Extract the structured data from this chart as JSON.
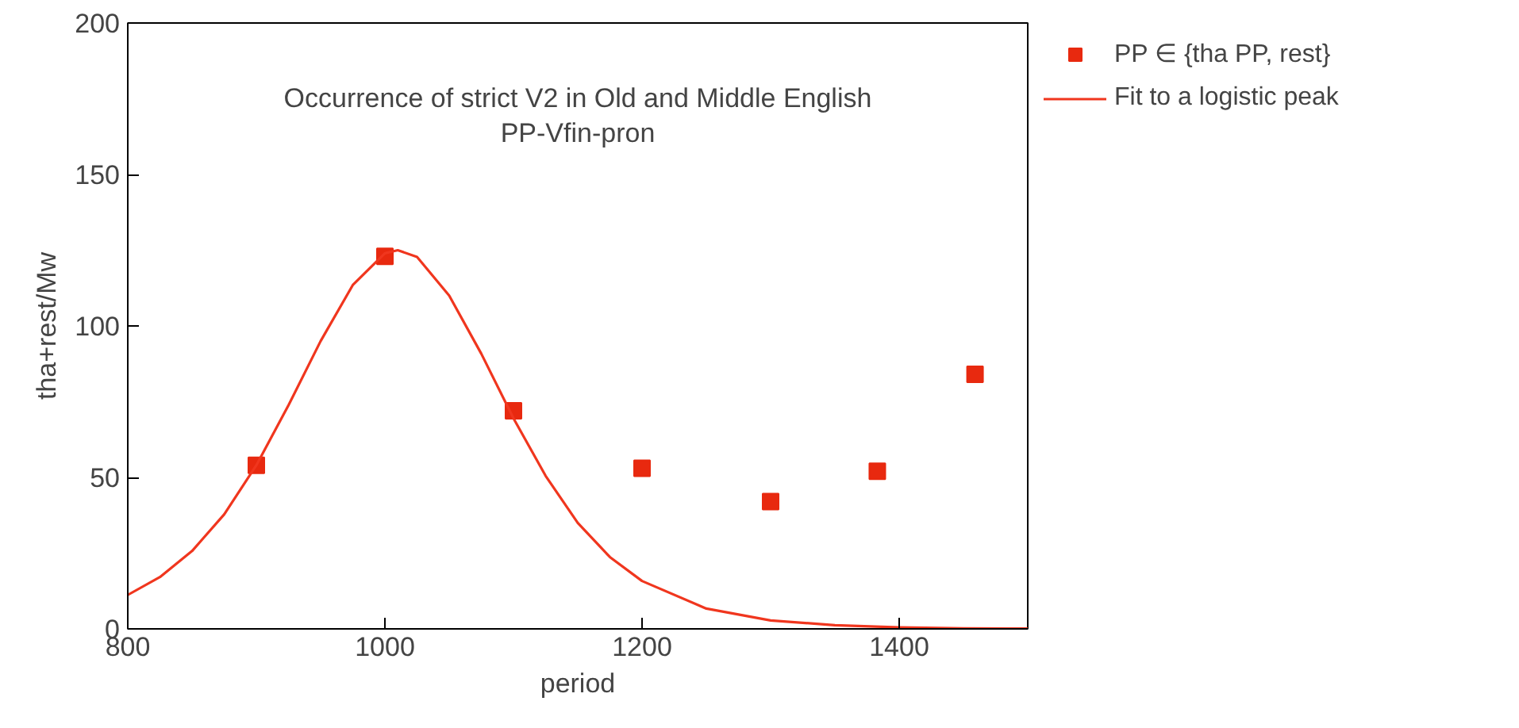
{
  "chart_data": {
    "type": "scatter",
    "title": "Occurrence of strict V2 in Old and Middle English",
    "subtitle": "PP-Vfin-pron",
    "xlabel": "period",
    "ylabel": "tha+rest/Mw",
    "xlim": [
      800,
      1500
    ],
    "ylim": [
      0,
      200
    ],
    "xticks": [
      800,
      1000,
      1200,
      1400
    ],
    "yticks": [
      0,
      50,
      100,
      150,
      200
    ],
    "grid": false,
    "legend": "top right",
    "series": [
      {
        "name": "PP ∈ {tha PP, rest}",
        "marker": "square",
        "color": "#e8290f",
        "x": [
          900,
          1000,
          1100,
          1200,
          1300,
          1383,
          1459
        ],
        "values": [
          54,
          123,
          72,
          53,
          42,
          52,
          84
        ]
      },
      {
        "name": "Fit to a logistic peak",
        "type": "line",
        "marker": "none",
        "line_style": "solid",
        "color": "#f0361e",
        "x": [
          800,
          825,
          850,
          875,
          900,
          925,
          950,
          975,
          1000,
          1010,
          1025,
          1050,
          1075,
          1100,
          1125,
          1150,
          1175,
          1200,
          1250,
          1300,
          1350,
          1400,
          1450,
          1500
        ],
        "values": [
          11.2,
          17.1,
          25.7,
          37.8,
          54,
          73.8,
          95,
          113.5,
          124,
          125,
          122.8,
          110,
          90.8,
          69.5,
          50.5,
          35,
          23.7,
          15.8,
          6.7,
          2.8,
          1.2,
          0.5,
          0.2,
          0.1
        ]
      }
    ]
  }
}
